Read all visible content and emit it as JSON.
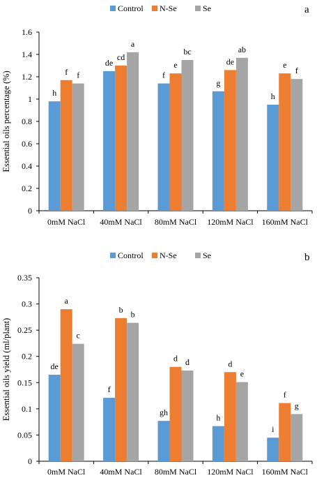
{
  "colors": {
    "control": "#5B9BD5",
    "nse": "#ED7D31",
    "se": "#A5A5A5",
    "axis": "#000000"
  },
  "chart_data": [
    {
      "panel": "a",
      "type": "bar",
      "ylabel": "Essential oils percentage (%)",
      "xlabel": "",
      "ylim": [
        0,
        1.6
      ],
      "yticks": [
        "0",
        "0.2",
        "0.4",
        "0.6",
        "0.8",
        "1",
        "1.2",
        "1.4",
        "1.6"
      ],
      "grid": false,
      "legend_position": "top",
      "categories": [
        "0mM NaCl",
        "40mM NaCl",
        "80mM NaCl",
        "120mM NaCl",
        "160mM NaCl"
      ],
      "series": [
        {
          "name": "Control",
          "color_key": "control",
          "values": [
            0.98,
            1.25,
            1.14,
            1.07,
            0.95
          ],
          "letters": [
            "h",
            "de",
            "f",
            "g",
            "h"
          ]
        },
        {
          "name": "N-Se",
          "color_key": "nse",
          "values": [
            1.17,
            1.3,
            1.23,
            1.26,
            1.23
          ],
          "letters": [
            "f",
            "cd",
            "e",
            "de",
            "e"
          ]
        },
        {
          "name": "Se",
          "color_key": "se",
          "values": [
            1.14,
            1.42,
            1.35,
            1.37,
            1.18
          ],
          "letters": [
            "f",
            "a",
            "bc",
            "ab",
            "f"
          ]
        }
      ]
    },
    {
      "panel": "b",
      "type": "bar",
      "ylabel": "Essential oils yield (ml/plant)",
      "xlabel": "",
      "ylim": [
        0,
        0.35
      ],
      "yticks": [
        "0",
        "0.05",
        "0.1",
        "0.15",
        "0.2",
        "0.25",
        "0.3",
        "0.35"
      ],
      "grid": false,
      "legend_position": "top",
      "categories": [
        "0mM NaCl",
        "40mM NaCl",
        "80mM NaCl",
        "120mM NaCl",
        "160mM NaCl"
      ],
      "series": [
        {
          "name": "Control",
          "color_key": "control",
          "values": [
            0.165,
            0.121,
            0.077,
            0.067,
            0.045
          ],
          "letters": [
            "de",
            "f",
            "gh",
            "h",
            "i"
          ]
        },
        {
          "name": "N-Se",
          "color_key": "nse",
          "values": [
            0.29,
            0.273,
            0.18,
            0.17,
            0.111
          ],
          "letters": [
            "a",
            "b",
            "d",
            "d",
            "f"
          ]
        },
        {
          "name": "Se",
          "color_key": "se",
          "values": [
            0.224,
            0.264,
            0.173,
            0.151,
            0.09
          ],
          "letters": [
            "c",
            "b",
            "d",
            "e",
            "g"
          ]
        }
      ]
    }
  ]
}
